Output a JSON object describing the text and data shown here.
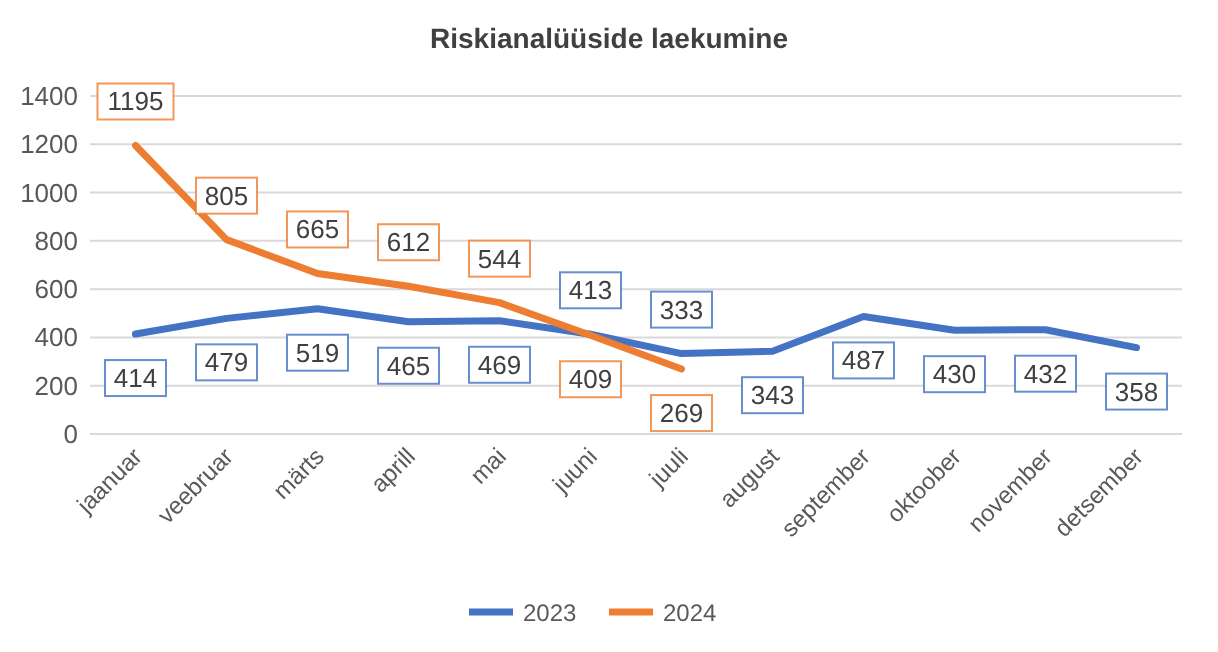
{
  "chart_data": {
    "type": "line",
    "title": "Riskianalüüside laekumine",
    "categories": [
      "jaanuar",
      "veebruar",
      "märts",
      "aprill",
      "mai",
      "juuni",
      "juuli",
      "august",
      "september",
      "oktoober",
      "november",
      "detsember"
    ],
    "series": [
      {
        "name": "2023",
        "color": "#4472c4",
        "values": [
          414,
          479,
          519,
          465,
          469,
          413,
          333,
          343,
          487,
          430,
          432,
          358
        ]
      },
      {
        "name": "2024",
        "color": "#ed7d31",
        "values": [
          1195,
          805,
          665,
          612,
          544,
          409,
          269,
          null,
          null,
          null,
          null,
          null
        ]
      }
    ],
    "ylim": [
      0,
      1400
    ],
    "yticks": [
      0,
      200,
      400,
      600,
      800,
      1000,
      1200,
      1400
    ],
    "grid": "y",
    "legend": "bottom",
    "data_labels": true,
    "marker": "none",
    "line_style": "solid"
  }
}
